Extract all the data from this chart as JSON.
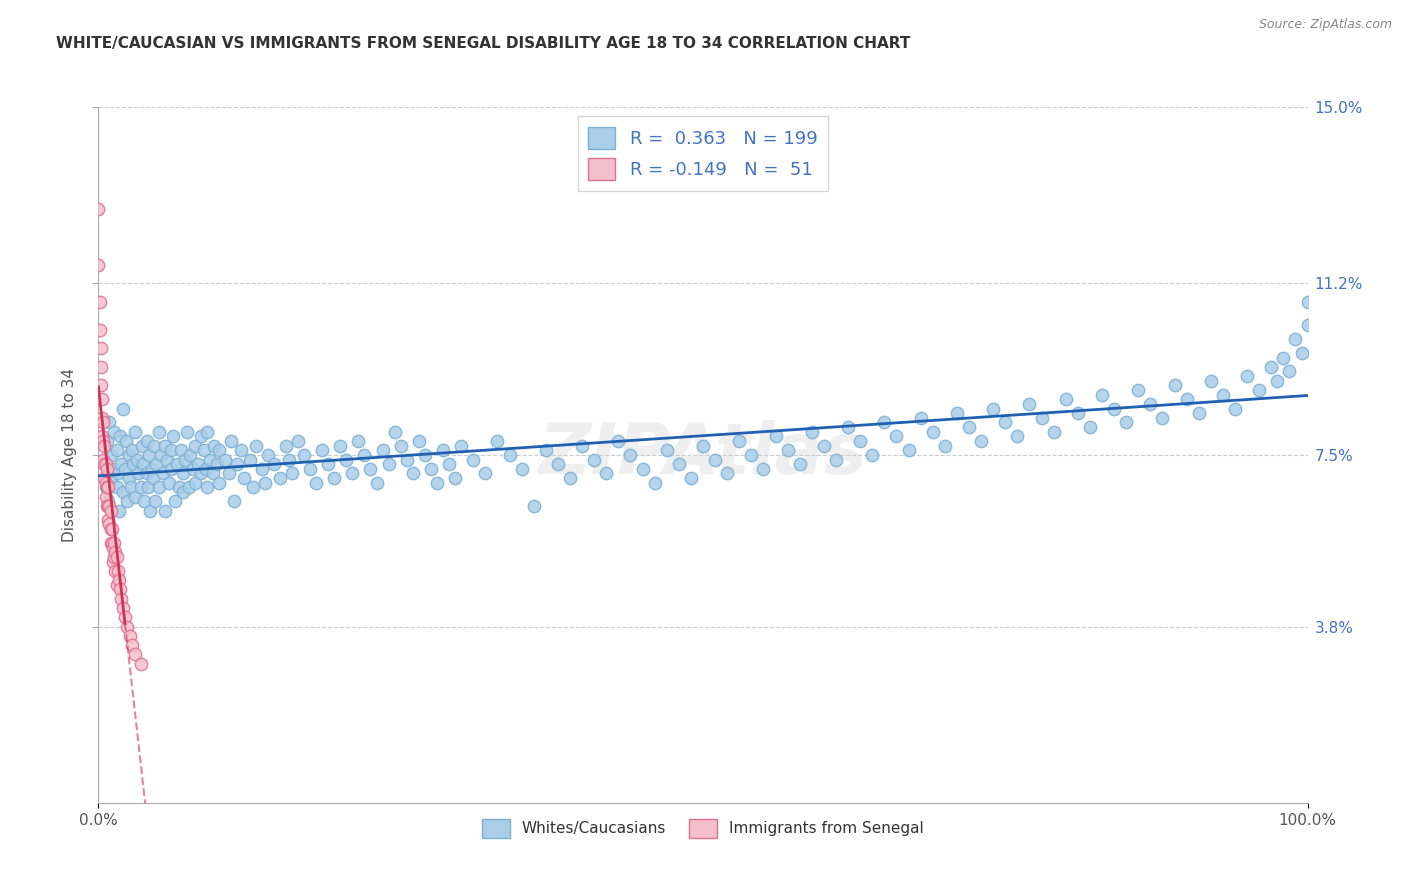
{
  "title": "WHITE/CAUCASIAN VS IMMIGRANTS FROM SENEGAL DISABILITY AGE 18 TO 34 CORRELATION CHART",
  "source_text": "Source: ZipAtlas.com",
  "ylabel": "Disability Age 18 to 34",
  "xlim": [
    0,
    1.0
  ],
  "ylim": [
    0,
    0.15
  ],
  "y_tick_vals": [
    0.038,
    0.075,
    0.112,
    0.15
  ],
  "y_tick_labels": [
    "3.8%",
    "7.5%",
    "11.2%",
    "15.0%"
  ],
  "legend1_label": "Whites/Caucasians",
  "legend2_label": "Immigrants from Senegal",
  "R1": 0.363,
  "N1": 199,
  "R2": -0.149,
  "N2": 51,
  "blue_color": "#aacde8",
  "blue_edge_color": "#7ab0d4",
  "pink_color": "#f4bfcc",
  "pink_edge_color": "#e07090",
  "blue_line_color": "#2060b0",
  "pink_line_color": "#cc3355",
  "watermark": "ZIPAtlas",
  "blue_scatter": [
    [
      0.005,
      0.073
    ],
    [
      0.006,
      0.068
    ],
    [
      0.007,
      0.078
    ],
    [
      0.008,
      0.065
    ],
    [
      0.009,
      0.082
    ],
    [
      0.01,
      0.075
    ],
    [
      0.01,
      0.07
    ],
    [
      0.012,
      0.072
    ],
    [
      0.013,
      0.08
    ],
    [
      0.015,
      0.068
    ],
    [
      0.015,
      0.076
    ],
    [
      0.016,
      0.071
    ],
    [
      0.017,
      0.063
    ],
    [
      0.018,
      0.079
    ],
    [
      0.019,
      0.073
    ],
    [
      0.02,
      0.067
    ],
    [
      0.02,
      0.085
    ],
    [
      0.022,
      0.072
    ],
    [
      0.023,
      0.078
    ],
    [
      0.024,
      0.065
    ],
    [
      0.025,
      0.075
    ],
    [
      0.025,
      0.07
    ],
    [
      0.027,
      0.068
    ],
    [
      0.028,
      0.076
    ],
    [
      0.029,
      0.073
    ],
    [
      0.03,
      0.08
    ],
    [
      0.03,
      0.066
    ],
    [
      0.032,
      0.074
    ],
    [
      0.033,
      0.071
    ],
    [
      0.035,
      0.068
    ],
    [
      0.036,
      0.077
    ],
    [
      0.037,
      0.073
    ],
    [
      0.038,
      0.065
    ],
    [
      0.04,
      0.071
    ],
    [
      0.04,
      0.078
    ],
    [
      0.041,
      0.068
    ],
    [
      0.042,
      0.075
    ],
    [
      0.043,
      0.063
    ],
    [
      0.044,
      0.072
    ],
    [
      0.045,
      0.07
    ],
    [
      0.046,
      0.077
    ],
    [
      0.047,
      0.065
    ],
    [
      0.048,
      0.073
    ],
    [
      0.05,
      0.08
    ],
    [
      0.05,
      0.068
    ],
    [
      0.052,
      0.075
    ],
    [
      0.053,
      0.071
    ],
    [
      0.055,
      0.077
    ],
    [
      0.055,
      0.063
    ],
    [
      0.057,
      0.074
    ],
    [
      0.058,
      0.069
    ],
    [
      0.06,
      0.076
    ],
    [
      0.06,
      0.072
    ],
    [
      0.062,
      0.079
    ],
    [
      0.063,
      0.065
    ],
    [
      0.065,
      0.073
    ],
    [
      0.067,
      0.068
    ],
    [
      0.068,
      0.076
    ],
    [
      0.07,
      0.071
    ],
    [
      0.07,
      0.067
    ],
    [
      0.072,
      0.074
    ],
    [
      0.073,
      0.08
    ],
    [
      0.075,
      0.068
    ],
    [
      0.076,
      0.075
    ],
    [
      0.078,
      0.072
    ],
    [
      0.08,
      0.069
    ],
    [
      0.08,
      0.077
    ],
    [
      0.082,
      0.073
    ],
    [
      0.085,
      0.071
    ],
    [
      0.085,
      0.079
    ],
    [
      0.087,
      0.076
    ],
    [
      0.089,
      0.072
    ],
    [
      0.09,
      0.068
    ],
    [
      0.09,
      0.08
    ],
    [
      0.092,
      0.074
    ],
    [
      0.095,
      0.071
    ],
    [
      0.096,
      0.077
    ],
    [
      0.098,
      0.073
    ],
    [
      0.1,
      0.076
    ],
    [
      0.1,
      0.069
    ],
    [
      0.105,
      0.074
    ],
    [
      0.108,
      0.071
    ],
    [
      0.11,
      0.078
    ],
    [
      0.112,
      0.065
    ],
    [
      0.115,
      0.073
    ],
    [
      0.118,
      0.076
    ],
    [
      0.12,
      0.07
    ],
    [
      0.125,
      0.074
    ],
    [
      0.128,
      0.068
    ],
    [
      0.13,
      0.077
    ],
    [
      0.135,
      0.072
    ],
    [
      0.138,
      0.069
    ],
    [
      0.14,
      0.075
    ],
    [
      0.145,
      0.073
    ],
    [
      0.15,
      0.07
    ],
    [
      0.155,
      0.077
    ],
    [
      0.158,
      0.074
    ],
    [
      0.16,
      0.071
    ],
    [
      0.165,
      0.078
    ],
    [
      0.17,
      0.075
    ],
    [
      0.175,
      0.072
    ],
    [
      0.18,
      0.069
    ],
    [
      0.185,
      0.076
    ],
    [
      0.19,
      0.073
    ],
    [
      0.195,
      0.07
    ],
    [
      0.2,
      0.077
    ],
    [
      0.205,
      0.074
    ],
    [
      0.21,
      0.071
    ],
    [
      0.215,
      0.078
    ],
    [
      0.22,
      0.075
    ],
    [
      0.225,
      0.072
    ],
    [
      0.23,
      0.069
    ],
    [
      0.235,
      0.076
    ],
    [
      0.24,
      0.073
    ],
    [
      0.245,
      0.08
    ],
    [
      0.25,
      0.077
    ],
    [
      0.255,
      0.074
    ],
    [
      0.26,
      0.071
    ],
    [
      0.265,
      0.078
    ],
    [
      0.27,
      0.075
    ],
    [
      0.275,
      0.072
    ],
    [
      0.28,
      0.069
    ],
    [
      0.285,
      0.076
    ],
    [
      0.29,
      0.073
    ],
    [
      0.295,
      0.07
    ],
    [
      0.3,
      0.077
    ],
    [
      0.31,
      0.074
    ],
    [
      0.32,
      0.071
    ],
    [
      0.33,
      0.078
    ],
    [
      0.34,
      0.075
    ],
    [
      0.35,
      0.072
    ],
    [
      0.36,
      0.064
    ],
    [
      0.37,
      0.076
    ],
    [
      0.38,
      0.073
    ],
    [
      0.39,
      0.07
    ],
    [
      0.4,
      0.077
    ],
    [
      0.41,
      0.074
    ],
    [
      0.42,
      0.071
    ],
    [
      0.43,
      0.078
    ],
    [
      0.44,
      0.075
    ],
    [
      0.45,
      0.072
    ],
    [
      0.46,
      0.069
    ],
    [
      0.47,
      0.076
    ],
    [
      0.48,
      0.073
    ],
    [
      0.49,
      0.07
    ],
    [
      0.5,
      0.077
    ],
    [
      0.51,
      0.074
    ],
    [
      0.52,
      0.071
    ],
    [
      0.53,
      0.078
    ],
    [
      0.54,
      0.075
    ],
    [
      0.55,
      0.072
    ],
    [
      0.56,
      0.079
    ],
    [
      0.57,
      0.076
    ],
    [
      0.58,
      0.073
    ],
    [
      0.59,
      0.08
    ],
    [
      0.6,
      0.077
    ],
    [
      0.61,
      0.074
    ],
    [
      0.62,
      0.081
    ],
    [
      0.63,
      0.078
    ],
    [
      0.64,
      0.075
    ],
    [
      0.65,
      0.082
    ],
    [
      0.66,
      0.079
    ],
    [
      0.67,
      0.076
    ],
    [
      0.68,
      0.083
    ],
    [
      0.69,
      0.08
    ],
    [
      0.7,
      0.077
    ],
    [
      0.71,
      0.084
    ],
    [
      0.72,
      0.081
    ],
    [
      0.73,
      0.078
    ],
    [
      0.74,
      0.085
    ],
    [
      0.75,
      0.082
    ],
    [
      0.76,
      0.079
    ],
    [
      0.77,
      0.086
    ],
    [
      0.78,
      0.083
    ],
    [
      0.79,
      0.08
    ],
    [
      0.8,
      0.087
    ],
    [
      0.81,
      0.084
    ],
    [
      0.82,
      0.081
    ],
    [
      0.83,
      0.088
    ],
    [
      0.84,
      0.085
    ],
    [
      0.85,
      0.082
    ],
    [
      0.86,
      0.089
    ],
    [
      0.87,
      0.086
    ],
    [
      0.88,
      0.083
    ],
    [
      0.89,
      0.09
    ],
    [
      0.9,
      0.087
    ],
    [
      0.91,
      0.084
    ],
    [
      0.92,
      0.091
    ],
    [
      0.93,
      0.088
    ],
    [
      0.94,
      0.085
    ],
    [
      0.95,
      0.092
    ],
    [
      0.96,
      0.089
    ],
    [
      0.97,
      0.094
    ],
    [
      0.975,
      0.091
    ],
    [
      0.98,
      0.096
    ],
    [
      0.985,
      0.093
    ],
    [
      0.99,
      0.1
    ],
    [
      0.995,
      0.097
    ],
    [
      1.0,
      0.108
    ],
    [
      1.0,
      0.103
    ]
  ],
  "pink_scatter": [
    [
      0.0,
      0.128
    ],
    [
      0.0,
      0.116
    ],
    [
      0.001,
      0.108
    ],
    [
      0.001,
      0.102
    ],
    [
      0.002,
      0.098
    ],
    [
      0.002,
      0.094
    ],
    [
      0.002,
      0.09
    ],
    [
      0.003,
      0.087
    ],
    [
      0.003,
      0.083
    ],
    [
      0.003,
      0.079
    ],
    [
      0.004,
      0.082
    ],
    [
      0.004,
      0.078
    ],
    [
      0.004,
      0.074
    ],
    [
      0.005,
      0.077
    ],
    [
      0.005,
      0.073
    ],
    [
      0.005,
      0.07
    ],
    [
      0.006,
      0.073
    ],
    [
      0.006,
      0.069
    ],
    [
      0.006,
      0.066
    ],
    [
      0.007,
      0.072
    ],
    [
      0.007,
      0.068
    ],
    [
      0.007,
      0.064
    ],
    [
      0.008,
      0.068
    ],
    [
      0.008,
      0.064
    ],
    [
      0.008,
      0.061
    ],
    [
      0.009,
      0.064
    ],
    [
      0.009,
      0.06
    ],
    [
      0.01,
      0.063
    ],
    [
      0.01,
      0.059
    ],
    [
      0.01,
      0.056
    ],
    [
      0.011,
      0.059
    ],
    [
      0.011,
      0.056
    ],
    [
      0.012,
      0.055
    ],
    [
      0.012,
      0.052
    ],
    [
      0.013,
      0.056
    ],
    [
      0.013,
      0.053
    ],
    [
      0.014,
      0.054
    ],
    [
      0.014,
      0.05
    ],
    [
      0.015,
      0.053
    ],
    [
      0.015,
      0.047
    ],
    [
      0.016,
      0.05
    ],
    [
      0.017,
      0.048
    ],
    [
      0.018,
      0.046
    ],
    [
      0.019,
      0.044
    ],
    [
      0.02,
      0.042
    ],
    [
      0.022,
      0.04
    ],
    [
      0.024,
      0.038
    ],
    [
      0.026,
      0.036
    ],
    [
      0.028,
      0.034
    ],
    [
      0.03,
      0.032
    ],
    [
      0.035,
      0.03
    ]
  ]
}
